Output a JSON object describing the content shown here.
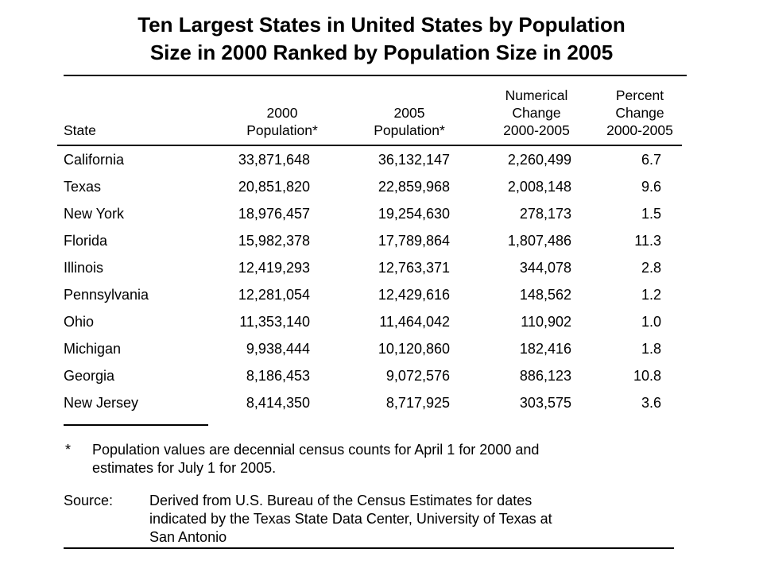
{
  "title": {
    "line1": "Ten Largest States in United States by Population",
    "line2": "Size in 2000 Ranked by Population Size in 2005"
  },
  "table": {
    "headers": {
      "state": "State",
      "pop2000": [
        "2000",
        "Population*"
      ],
      "pop2005": [
        "2005",
        "Population*"
      ],
      "numchange": [
        "Numerical",
        "Change",
        "2000-2005"
      ],
      "pctchange": [
        "Percent",
        "Change",
        "2000-2005"
      ]
    },
    "rows": [
      {
        "state": "California",
        "pop2000": "33,871,648",
        "pop2005": "36,132,147",
        "numchange": "2,260,499",
        "pctchange": "6.7"
      },
      {
        "state": "Texas",
        "pop2000": "20,851,820",
        "pop2005": "22,859,968",
        "numchange": "2,008,148",
        "pctchange": "9.6"
      },
      {
        "state": "New York",
        "pop2000": "18,976,457",
        "pop2005": "19,254,630",
        "numchange": "278,173",
        "pctchange": "1.5"
      },
      {
        "state": "Florida",
        "pop2000": "15,982,378",
        "pop2005": "17,789,864",
        "numchange": "1,807,486",
        "pctchange": "11.3"
      },
      {
        "state": "Illinois",
        "pop2000": "12,419,293",
        "pop2005": "12,763,371",
        "numchange": "344,078",
        "pctchange": "2.8"
      },
      {
        "state": "Pennsylvania",
        "pop2000": "12,281,054",
        "pop2005": "12,429,616",
        "numchange": "148,562",
        "pctchange": "1.2"
      },
      {
        "state": "Ohio",
        "pop2000": "11,353,140",
        "pop2005": "11,464,042",
        "numchange": "110,902",
        "pctchange": "1.0"
      },
      {
        "state": "Michigan",
        "pop2000": "9,938,444",
        "pop2005": "10,120,860",
        "numchange": "182,416",
        "pctchange": "1.8"
      },
      {
        "state": "Georgia",
        "pop2000": "8,186,453",
        "pop2005": "9,072,576",
        "numchange": "886,123",
        "pctchange": "10.8"
      },
      {
        "state": "New Jersey",
        "pop2000": "8,414,350",
        "pop2005": "8,717,925",
        "numchange": "303,575",
        "pctchange": "3.6"
      }
    ]
  },
  "footnote": {
    "marker": "*",
    "line1": "Population values are decennial census counts for April 1 for 2000 and",
    "line2": "estimates for July 1 for 2005."
  },
  "source": {
    "label": "Source:",
    "line1": "Derived from U.S. Bureau of the Census Estimates for dates",
    "line2": "indicated by the Texas State Data Center, University of Texas at",
    "line3": "San Antonio"
  }
}
